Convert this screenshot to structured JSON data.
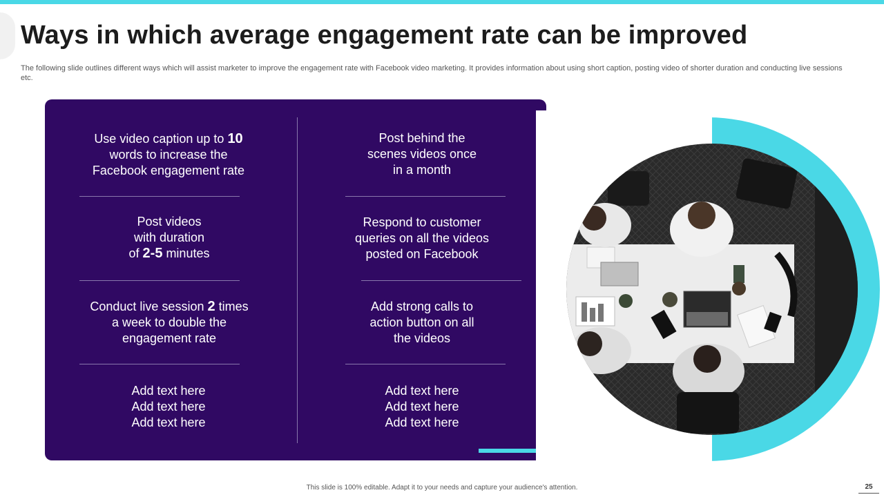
{
  "slide": {
    "title": "Ways in which average engagement rate can be improved",
    "subtitle": "The following slide outlines different ways which will assist marketer to improve the engagement rate with Facebook video marketing. It provides information about using short caption, posting video of shorter duration and conducting live sessions etc.",
    "footer": "This slide is 100% editable. Adapt it to your needs and capture your audience's attention.",
    "page_number": "25"
  },
  "left_column": {
    "item1": {
      "l1a": "Use video caption up to ",
      "l1num": "10",
      "l2": "words to increase the",
      "l3": "Facebook engagement rate"
    },
    "item2": {
      "l1": "Post videos",
      "l2": "with duration",
      "l3a": "of ",
      "l3num": "2-5",
      "l3b": " minutes"
    },
    "item3": {
      "l1a": "Conduct live session ",
      "l1num": "2",
      "l1b": " times",
      "l2": "a week to double the",
      "l3": "engagement rate"
    },
    "item4": {
      "l1": "Add text here",
      "l2": "Add text here",
      "l3": "Add text here"
    }
  },
  "right_column": {
    "item1": {
      "l1": "Post behind the",
      "l2": "scenes videos once",
      "l3": "in a month"
    },
    "item2": {
      "l1": "Respond to customer",
      "l2": "queries on all the videos",
      "l3": "posted on Facebook"
    },
    "item3": {
      "l1": "Add strong calls to",
      "l2": "action button on all",
      "l3": "the videos"
    },
    "item4": {
      "l1": "Add text here",
      "l2": "Add text here",
      "l3": "Add text here"
    }
  },
  "colors": {
    "panel": "#300963",
    "accent": "#4ad8e6"
  }
}
